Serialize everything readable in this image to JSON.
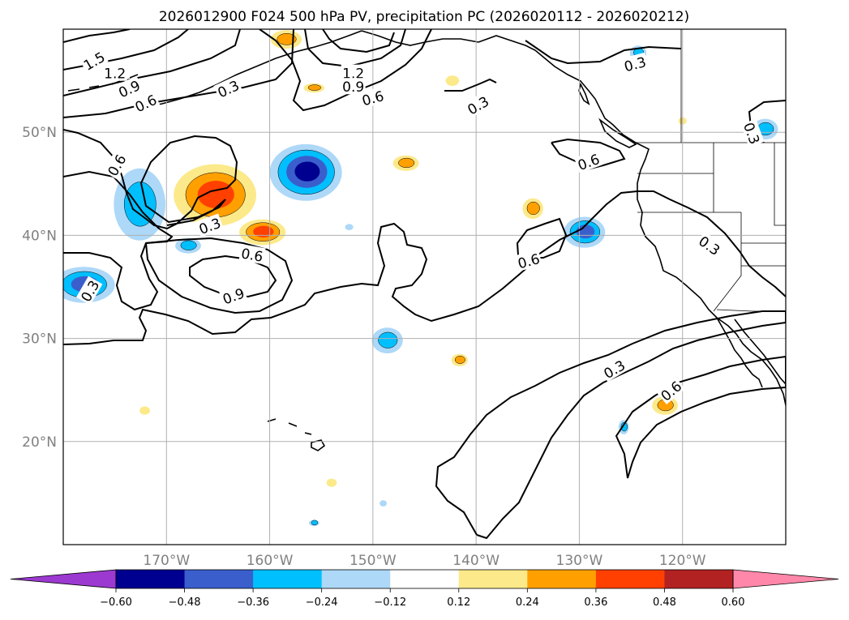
{
  "chart_data": {
    "type": "heatmap",
    "title": "2026012900 F024 500 hPa PV, precipitation PC (2026020112 - 2026020212)",
    "lon_range": [
      -180,
      -110
    ],
    "lat_range": [
      10,
      60
    ],
    "x_ticks": [
      {
        "value": -170,
        "label": "170°W"
      },
      {
        "value": -160,
        "label": "160°W"
      },
      {
        "value": -150,
        "label": "150°W"
      },
      {
        "value": -140,
        "label": "140°W"
      },
      {
        "value": -130,
        "label": "130°W"
      },
      {
        "value": -120,
        "label": "120°W"
      }
    ],
    "y_ticks": [
      {
        "value": 50,
        "label": "50°N"
      },
      {
        "value": 40,
        "label": "40°N"
      },
      {
        "value": 30,
        "label": "30°N"
      },
      {
        "value": 20,
        "label": "20°N"
      }
    ],
    "grid": true,
    "colorbar": {
      "orientation": "horizontal",
      "extend": "both",
      "colors": [
        "#9c39d1",
        "#000090",
        "#3a5fcd",
        "#00bfff",
        "#add8f8",
        "#ffffff",
        "#fce98a",
        "#ffa000",
        "#ff4000",
        "#b22222",
        "#ff88aa"
      ],
      "tick_values": [
        -0.6,
        -0.48,
        -0.36,
        -0.24,
        -0.12,
        0.12,
        0.24,
        0.36,
        0.48,
        0.6
      ],
      "tick_labels": [
        "−0.60",
        "−0.48",
        "−0.36",
        "−0.24",
        "−0.12",
        "0.12",
        "0.24",
        "0.36",
        "0.48",
        "0.60"
      ]
    },
    "pv_contour_levels": [
      0.3,
      0.6,
      0.9,
      1.2,
      1.5
    ],
    "pv_contour_labels": [
      {
        "text": "1.5",
        "lon": -177,
        "lat": 56.9,
        "angle": -30
      },
      {
        "text": "1.2",
        "lon": -175,
        "lat": 55.7,
        "angle": 0
      },
      {
        "text": "0.9",
        "lon": -173.6,
        "lat": 54.2,
        "angle": -25
      },
      {
        "text": "0.6",
        "lon": -172,
        "lat": 52.8,
        "angle": -25
      },
      {
        "text": "0.3",
        "lon": -164,
        "lat": 54.2,
        "angle": -25
      },
      {
        "text": "1.2",
        "lon": -151.9,
        "lat": 55.7,
        "angle": 0
      },
      {
        "text": "0.9",
        "lon": -151.9,
        "lat": 54.4,
        "angle": 0
      },
      {
        "text": "0.6",
        "lon": -150,
        "lat": 53.3,
        "angle": -15
      },
      {
        "text": "0.3",
        "lon": -124.6,
        "lat": 56.6,
        "angle": -15
      },
      {
        "text": "0.3",
        "lon": -139.8,
        "lat": 52.6,
        "angle": -30
      },
      {
        "text": "0.3",
        "lon": -113.3,
        "lat": 49.9,
        "angle": 70
      },
      {
        "text": "0.6",
        "lon": -174.8,
        "lat": 46.8,
        "angle": -60
      },
      {
        "text": "0.3",
        "lon": -165.8,
        "lat": 40.9,
        "angle": -20
      },
      {
        "text": "0.6",
        "lon": -161.7,
        "lat": 38.1,
        "angle": 10
      },
      {
        "text": "0.9",
        "lon": -163.5,
        "lat": 34.1,
        "angle": -20
      },
      {
        "text": "0.3",
        "lon": -177.4,
        "lat": 34.6,
        "angle": -60
      },
      {
        "text": "0.6",
        "lon": -129.1,
        "lat": 47.1,
        "angle": -20
      },
      {
        "text": "0.6",
        "lon": -134.9,
        "lat": 37.5,
        "angle": -15
      },
      {
        "text": "0.3",
        "lon": -117.4,
        "lat": 39.0,
        "angle": 35
      },
      {
        "text": "0.3",
        "lon": -126.6,
        "lat": 27.0,
        "angle": -30
      },
      {
        "text": "0.6",
        "lon": -121.1,
        "lat": 24.9,
        "angle": -40
      }
    ],
    "precip_features": [
      {
        "lon": -165.3,
        "lat": 43.9,
        "value": 0.42,
        "extent_deg": [
          8,
          6
        ]
      },
      {
        "lon": -160.7,
        "lat": 40.3,
        "value": 0.38,
        "extent_deg": [
          4.5,
          2.5
        ]
      },
      {
        "lon": -156.5,
        "lat": 46.1,
        "value": -0.52,
        "extent_deg": [
          7,
          5.5
        ]
      },
      {
        "lon": -172.6,
        "lat": 43.0,
        "value": -0.3,
        "extent_deg": [
          5,
          7
        ]
      },
      {
        "lon": -178.0,
        "lat": 35.2,
        "value": -0.4,
        "extent_deg": [
          6,
          3.5
        ]
      },
      {
        "lon": -167.9,
        "lat": 39.0,
        "value": -0.28,
        "extent_deg": [
          2.5,
          1.5
        ]
      },
      {
        "lon": -146.8,
        "lat": 47.0,
        "value": 0.3,
        "extent_deg": [
          2.5,
          1.5
        ]
      },
      {
        "lon": -134.5,
        "lat": 42.6,
        "value": 0.32,
        "extent_deg": [
          2,
          2
        ]
      },
      {
        "lon": -129.5,
        "lat": 40.3,
        "value": -0.4,
        "extent_deg": [
          4,
          3
        ]
      },
      {
        "lon": -148.6,
        "lat": 29.8,
        "value": -0.3,
        "extent_deg": [
          3,
          2.5
        ]
      },
      {
        "lon": -141.6,
        "lat": 27.9,
        "value": 0.3,
        "extent_deg": [
          1.6,
          1.2
        ]
      },
      {
        "lon": -121.7,
        "lat": 23.5,
        "value": 0.28,
        "extent_deg": [
          2.5,
          1.8
        ]
      },
      {
        "lon": -125.7,
        "lat": 21.4,
        "value": -0.25,
        "extent_deg": [
          1,
          1.4
        ]
      },
      {
        "lon": -158.4,
        "lat": 59.0,
        "value": 0.3,
        "extent_deg": [
          3,
          1.8
        ]
      },
      {
        "lon": -155.7,
        "lat": 54.3,
        "value": 0.28,
        "extent_deg": [
          2,
          0.9
        ]
      },
      {
        "lon": -142.3,
        "lat": 55.0,
        "value": 0.2,
        "extent_deg": [
          1.3,
          1
        ]
      },
      {
        "lon": -124.3,
        "lat": 57.7,
        "value": -0.25,
        "extent_deg": [
          1.6,
          1.4
        ]
      },
      {
        "lon": -112.0,
        "lat": 50.3,
        "value": -0.25,
        "extent_deg": [
          2.5,
          2
        ]
      },
      {
        "lon": -172.1,
        "lat": 23.0,
        "value": 0.22,
        "extent_deg": [
          1,
          0.8
        ]
      },
      {
        "lon": -154.0,
        "lat": 16.0,
        "value": 0.22,
        "extent_deg": [
          1,
          0.8
        ]
      },
      {
        "lon": -152.3,
        "lat": 40.8,
        "value": -0.2,
        "extent_deg": [
          0.8,
          0.6
        ]
      },
      {
        "lon": -120.0,
        "lat": 51.1,
        "value": 0.2,
        "extent_deg": [
          0.8,
          0.7
        ]
      },
      {
        "lon": -149.0,
        "lat": 14.0,
        "value": -0.18,
        "extent_deg": [
          0.7,
          0.6
        ]
      },
      {
        "lon": -155.7,
        "lat": 12.1,
        "value": -0.25,
        "extent_deg": [
          1,
          0.6
        ]
      }
    ]
  }
}
